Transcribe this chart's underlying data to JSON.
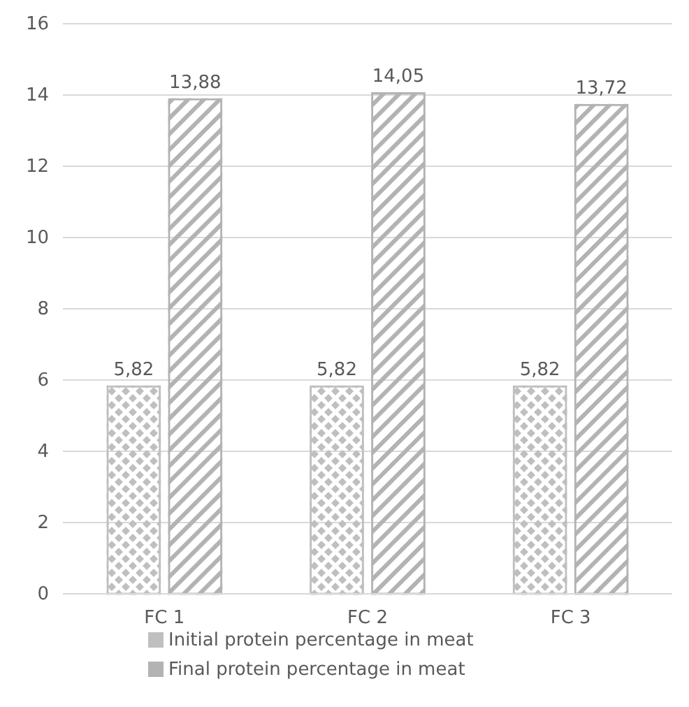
{
  "chart_data": {
    "type": "bar",
    "categories": [
      "FC 1",
      "FC 2",
      "FC 3"
    ],
    "series": [
      {
        "name": "Initial protein percentage in meat",
        "color": "#bfbfbf",
        "values": [
          5.82,
          5.82,
          5.82
        ],
        "value_labels": [
          "5,82",
          "5,82",
          "5,82"
        ]
      },
      {
        "name": "Final protein percentage in meat",
        "color": "#b3b3b3",
        "values": [
          13.88,
          14.05,
          13.72
        ],
        "value_labels": [
          "13,88",
          "14,05",
          "13,72"
        ]
      }
    ],
    "ylim": [
      0,
      16
    ],
    "yticks": [
      0,
      2,
      4,
      6,
      8,
      10,
      12,
      14,
      16
    ],
    "grid": "y",
    "legend": "bottom"
  }
}
